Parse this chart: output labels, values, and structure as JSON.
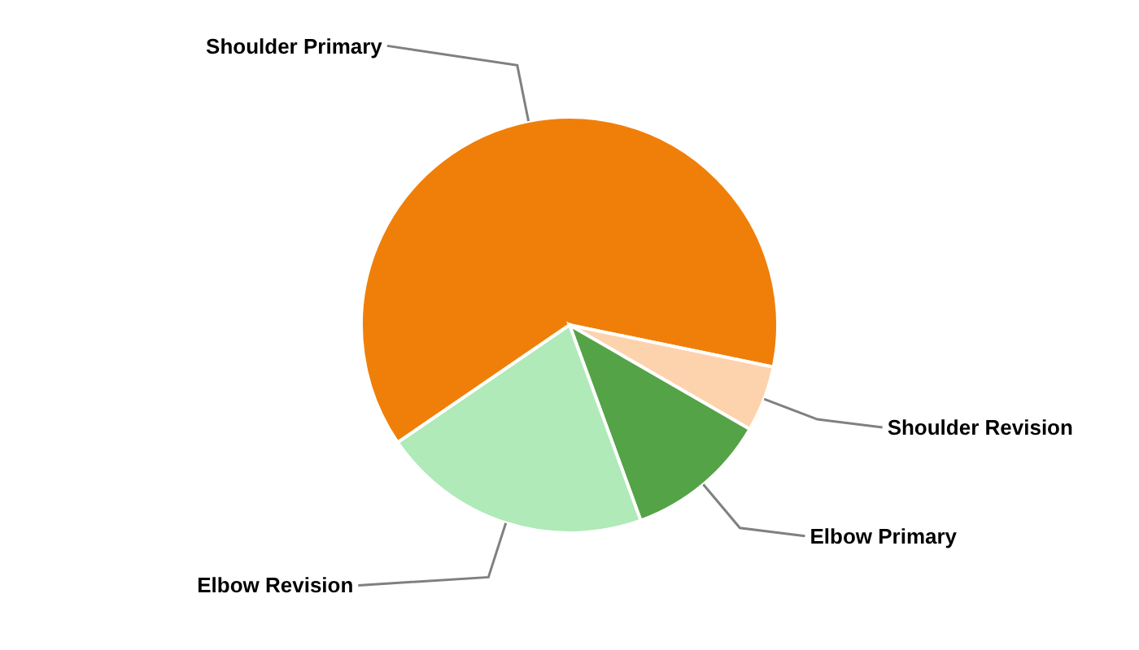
{
  "chart_data": {
    "type": "pie",
    "categories": [
      "Shoulder Primary",
      "Shoulder Revision",
      "Elbow Primary",
      "Elbow Revision"
    ],
    "values": [
      62.8,
      5.1,
      11.1,
      21.0
    ],
    "colors": [
      "#f07f09",
      "#fdd3ae",
      "#54a346",
      "#afeab8"
    ],
    "legend": false
  }
}
